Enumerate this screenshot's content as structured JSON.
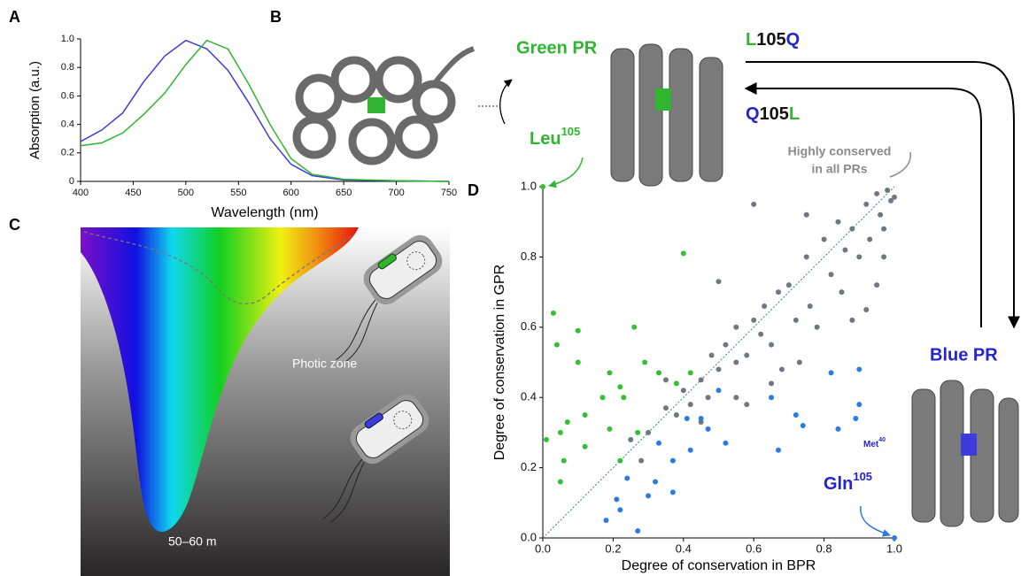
{
  "panel_labels": [
    "A",
    "B",
    "C",
    "D"
  ],
  "chart_data": [
    {
      "type": "line",
      "xlabel": "Wavelength (nm)",
      "ylabel": "Absorption (a.u.)",
      "x": [
        400,
        420,
        440,
        460,
        480,
        500,
        520,
        540,
        560,
        580,
        600,
        620,
        650,
        700,
        750
      ],
      "series": [
        {
          "color": "#3c3cdc",
          "values": [
            0.28,
            0.36,
            0.48,
            0.7,
            0.88,
            0.99,
            0.93,
            0.78,
            0.55,
            0.3,
            0.12,
            0.04,
            0.01,
            0.005,
            0
          ]
        },
        {
          "color": "#2fb52f",
          "values": [
            0.25,
            0.27,
            0.34,
            0.47,
            0.62,
            0.82,
            0.99,
            0.93,
            0.68,
            0.4,
            0.16,
            0.05,
            0.015,
            0.005,
            0
          ]
        }
      ],
      "xlim": [
        400,
        750
      ],
      "ylim": [
        0,
        1
      ],
      "xticks": [
        400,
        450,
        500,
        550,
        600,
        650,
        700,
        750
      ],
      "yticks": [
        0,
        0.2,
        0.4,
        0.6,
        0.8,
        {
          "value": 1,
          "label": "1.0"
        }
      ]
    },
    {
      "type": "scatter",
      "xlabel": "Degree of conservation in BPR",
      "ylabel": "Degree of conservation in GPR",
      "xlim": [
        0,
        1
      ],
      "ylim": [
        0,
        1
      ],
      "xticks": [
        {
          "value": 0,
          "label": "0.0"
        },
        0.2,
        0.4,
        0.6,
        0.8,
        {
          "value": 1,
          "label": "1.0"
        }
      ],
      "yticks": [
        {
          "value": 0,
          "label": "0.0"
        },
        0.2,
        0.4,
        0.6,
        0.8,
        {
          "value": 1,
          "label": "1.0"
        }
      ],
      "series": [
        {
          "color": "#6f7782",
          "x": [
            0.3,
            0.35,
            0.38,
            0.4,
            0.42,
            0.45,
            0.47,
            0.48,
            0.5,
            0.52,
            0.55,
            0.55,
            0.58,
            0.6,
            0.62,
            0.63,
            0.65,
            0.67,
            0.68,
            0.7,
            0.72,
            0.73,
            0.75,
            0.76,
            0.78,
            0.8,
            0.82,
            0.84,
            0.85,
            0.86,
            0.88,
            0.9,
            0.92,
            0.93,
            0.95,
            0.96,
            0.97,
            0.98,
            0.99,
            1.0,
            0.6,
            0.75,
            0.5,
            0.35,
            0.25,
            0.28,
            0.45,
            0.58,
            0.88,
            0.95,
            0.97,
            0.92,
            0.55,
            0.65
          ],
          "values": [
            0.3,
            0.37,
            0.35,
            0.42,
            0.38,
            0.45,
            0.4,
            0.52,
            0.48,
            0.55,
            0.5,
            0.6,
            0.52,
            0.62,
            0.58,
            0.66,
            0.55,
            0.7,
            0.48,
            0.72,
            0.62,
            0.5,
            0.8,
            0.66,
            0.6,
            0.85,
            0.75,
            0.9,
            0.7,
            0.82,
            0.88,
            0.8,
            0.95,
            0.85,
            0.98,
            0.92,
            0.88,
            0.99,
            0.96,
            0.97,
            0.95,
            0.92,
            0.73,
            0.45,
            0.28,
            0.22,
            0.33,
            0.38,
            0.62,
            0.72,
            0.8,
            0.65,
            0.4,
            0.44
          ]
        },
        {
          "color": "#33c033",
          "x": [
            0.03,
            0.04,
            0.1,
            0.01,
            0.05,
            0.06,
            0.12,
            0.1,
            0.19,
            0.22,
            0.23,
            0.26,
            0.29,
            0.33,
            0.38,
            0.4,
            0.42,
            0.19,
            0.22,
            0.12,
            0.07,
            0.17,
            0.05,
            0.27,
            0
          ],
          "values": [
            0.64,
            0.55,
            0.59,
            0.28,
            0.3,
            0.22,
            0.35,
            0.5,
            0.47,
            0.43,
            0.4,
            0.6,
            0.5,
            0.47,
            0.44,
            0.81,
            0.47,
            0.31,
            0.22,
            0.26,
            0.33,
            0.4,
            0.16,
            0.3,
            1
          ]
        },
        {
          "color": "#2a7be4",
          "x": [
            1,
            0.18,
            0.27,
            0.21,
            0.24,
            0.32,
            0.37,
            0.42,
            0.47,
            0.52,
            0.41,
            0.33,
            0.3,
            0.5,
            0.65,
            0.72,
            0.67,
            0.84,
            0.82,
            0.89,
            0.9,
            0.9,
            0.74,
            0.37,
            0.45,
            0.22
          ],
          "values": [
            0,
            0.05,
            0.02,
            0.11,
            0.17,
            0.16,
            0.22,
            0.25,
            0.31,
            0.27,
            0.34,
            0.27,
            0.12,
            0.42,
            0.4,
            0.35,
            0.25,
            0.31,
            0.47,
            0.34,
            0.48,
            0.38,
            0.32,
            0.13,
            0.34,
            0.08
          ]
        }
      ]
    }
  ],
  "annotations": {
    "green_pr": "Green PR",
    "blue_pr": "Blue PR",
    "mutation_1": {
      "from": "L",
      "pos": "105",
      "to": "Q"
    },
    "mutation_2": {
      "from": "Q",
      "pos": "105",
      "to": "L"
    },
    "leu": {
      "name": "Leu",
      "sup": "105"
    },
    "gln": {
      "name": "Gln",
      "sup": "105"
    },
    "met": {
      "name": "Met",
      "sup": "40"
    },
    "conserved": [
      "Highly conserved",
      "in all PRs"
    ],
    "photic_zone": "Photic zone",
    "depth": "50–60 m"
  }
}
